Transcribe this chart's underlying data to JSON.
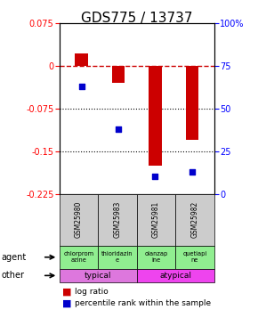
{
  "title": "GDS775 / 13737",
  "samples": [
    "GSM25980",
    "GSM25983",
    "GSM25981",
    "GSM25982"
  ],
  "log_ratios": [
    0.022,
    -0.03,
    -0.175,
    -0.13
  ],
  "percentile_ranks": [
    63,
    38,
    10,
    13
  ],
  "agents": [
    "chlorprom\nazine",
    "thioridazin\ne",
    "olanzap\nine",
    "quetiapi\nne"
  ],
  "other_groups": [
    {
      "label": "typical",
      "cols": [
        0,
        1
      ],
      "color": "#dd77dd"
    },
    {
      "label": "atypical",
      "cols": [
        2,
        3
      ],
      "color": "#ee44ee"
    }
  ],
  "ylim_left": [
    -0.225,
    0.075
  ],
  "ylim_right": [
    0,
    100
  ],
  "left_yticks": [
    0.075,
    0,
    -0.075,
    -0.15,
    -0.225
  ],
  "right_yticks": [
    100,
    75,
    50,
    25,
    0
  ],
  "bar_color": "#cc0000",
  "dot_color": "#0000cc",
  "zero_line_color": "#cc0000",
  "grid_lines": [
    -0.075,
    -0.15
  ],
  "agent_bg_color": "#90ee90",
  "sample_bg_color": "#cccccc",
  "title_fontsize": 11,
  "tick_fontsize": 7,
  "bar_width": 0.35
}
